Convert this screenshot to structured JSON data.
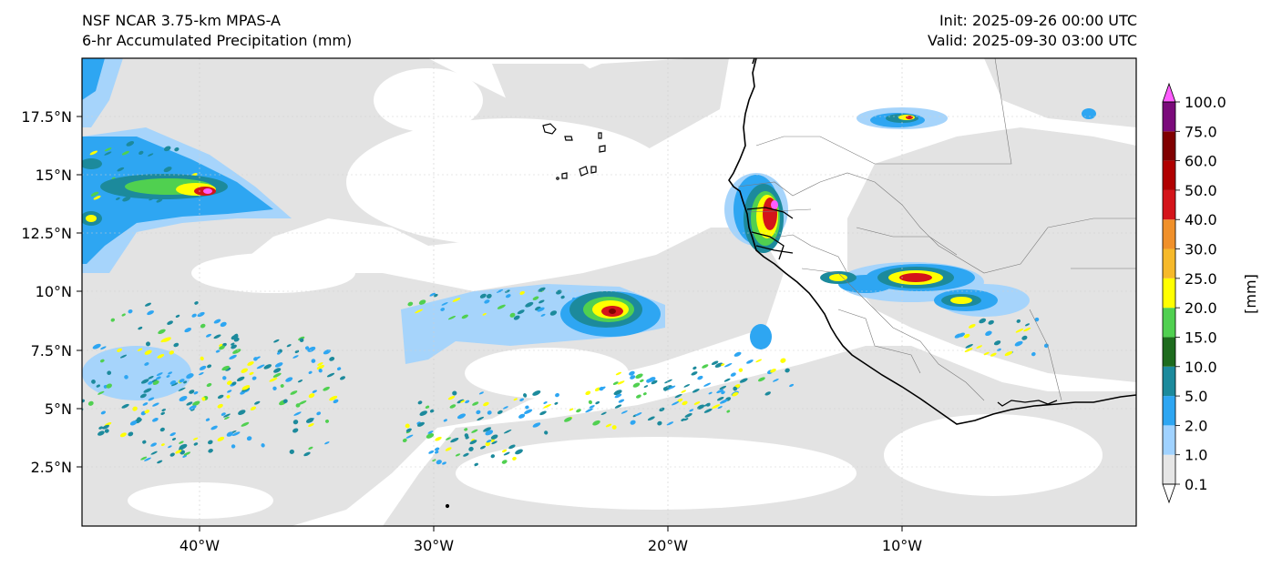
{
  "header": {
    "title_line1": "NSF NCAR 3.75-km MPAS-A",
    "title_line2": "6-hr Accumulated Precipitation (mm)",
    "init": "Init: 2025-09-26 00:00 UTC",
    "valid": "Valid: 2025-09-30 03:00 UTC"
  },
  "axes": {
    "lat_ticks": [
      "17.5°N",
      "15°N",
      "12.5°N",
      "10°N",
      "7.5°N",
      "5°N",
      "2.5°N"
    ],
    "lon_ticks": [
      "40°W",
      "30°W",
      "20°W",
      "10°W"
    ],
    "lon_range": [
      -45,
      0
    ],
    "lat_range": [
      0,
      20
    ]
  },
  "colorbar": {
    "unit_label": "[mm]",
    "levels": [
      "0.1",
      "1.0",
      "2.0",
      "5.0",
      "10.0",
      "15.0",
      "20.0",
      "25.0",
      "30.0",
      "40.0",
      "50.0",
      "60.0",
      "75.0",
      "100.0"
    ],
    "colors": [
      "#e6e6e6",
      "#a0d2ff",
      "#2ea6f2",
      "#1c8a9c",
      "#1d6b1d",
      "#50d050",
      "#ffff00",
      "#f6b92a",
      "#f0902a",
      "#d4141a",
      "#b00000",
      "#800000",
      "#7a0a7a",
      "#ff5cff"
    ]
  }
}
